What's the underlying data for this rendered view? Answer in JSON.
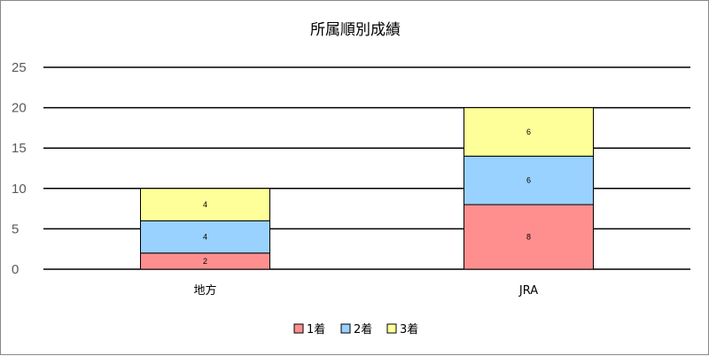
{
  "chart_data": {
    "type": "bar",
    "stacked": true,
    "title": "所属順別成績",
    "categories": [
      "地方",
      "JRA"
    ],
    "series": [
      {
        "name": "1着",
        "values": [
          2,
          8
        ],
        "color": "#FF8F8F"
      },
      {
        "name": "2着",
        "values": [
          4,
          6
        ],
        "color": "#99D1FF"
      },
      {
        "name": "3着",
        "values": [
          4,
          6
        ],
        "color": "#FFFF99"
      }
    ],
    "ylim": [
      0,
      25
    ],
    "yticks": [
      0,
      5,
      10,
      15,
      20,
      25
    ],
    "grid": true,
    "legend": "bottom",
    "data_labels": true
  }
}
